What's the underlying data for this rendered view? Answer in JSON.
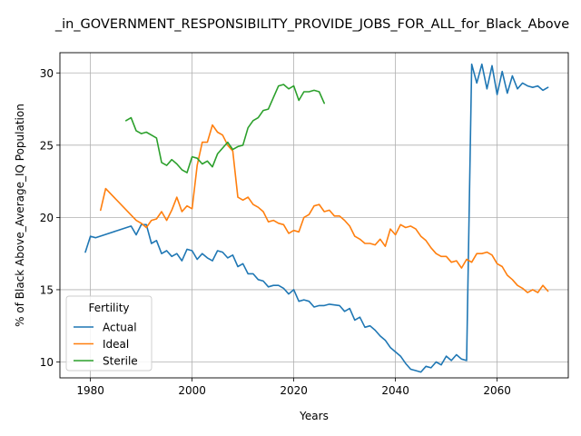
{
  "chart_data": {
    "type": "line",
    "title": "_in_GOVERNMENT_RESPONSIBILITY_PROVIDE_JOBS_FOR_ALL_for_Black_Above",
    "xlabel": "Years",
    "ylabel": "% of Black Above_Average_IQ Population",
    "xlim": [
      1974,
      2074
    ],
    "ylim": [
      8.9,
      31.4
    ],
    "xticks": [
      1980,
      2000,
      2020,
      2040,
      2060
    ],
    "yticks": [
      10,
      15,
      20,
      25,
      30
    ],
    "grid": true,
    "legend": {
      "title": "Fertility",
      "position": "lower-left"
    },
    "series": [
      {
        "name": "Actual",
        "color": "#1f77b4",
        "points": [
          [
            1979,
            17.6
          ],
          [
            1980,
            18.7
          ],
          [
            1981,
            18.6
          ],
          [
            1988,
            19.4
          ],
          [
            1989,
            18.8
          ],
          [
            1990,
            19.5
          ],
          [
            1991,
            19.5
          ],
          [
            1992,
            18.2
          ],
          [
            1993,
            18.4
          ],
          [
            1994,
            17.5
          ],
          [
            1995,
            17.7
          ],
          [
            1996,
            17.3
          ],
          [
            1997,
            17.5
          ],
          [
            1998,
            17.0
          ],
          [
            1999,
            17.8
          ],
          [
            2000,
            17.7
          ],
          [
            2001,
            17.1
          ],
          [
            2002,
            17.5
          ],
          [
            2003,
            17.2
          ],
          [
            2004,
            17.0
          ],
          [
            2005,
            17.7
          ],
          [
            2006,
            17.6
          ],
          [
            2007,
            17.2
          ],
          [
            2008,
            17.4
          ],
          [
            2009,
            16.6
          ],
          [
            2010,
            16.8
          ],
          [
            2011,
            16.1
          ],
          [
            2012,
            16.1
          ],
          [
            2013,
            15.7
          ],
          [
            2014,
            15.6
          ],
          [
            2015,
            15.2
          ],
          [
            2016,
            15.3
          ],
          [
            2017,
            15.3
          ],
          [
            2018,
            15.1
          ],
          [
            2019,
            14.7
          ],
          [
            2020,
            15.0
          ],
          [
            2021,
            14.2
          ],
          [
            2022,
            14.3
          ],
          [
            2023,
            14.2
          ],
          [
            2024,
            13.8
          ],
          [
            2025,
            13.9
          ],
          [
            2026,
            13.9
          ],
          [
            2027,
            14.0
          ],
          [
            2029,
            13.9
          ],
          [
            2030,
            13.5
          ],
          [
            2031,
            13.7
          ],
          [
            2032,
            12.9
          ],
          [
            2033,
            13.1
          ],
          [
            2034,
            12.4
          ],
          [
            2035,
            12.5
          ],
          [
            2036,
            12.2
          ],
          [
            2037,
            11.8
          ],
          [
            2038,
            11.5
          ],
          [
            2039,
            11.0
          ],
          [
            2040,
            10.7
          ],
          [
            2041,
            10.4
          ],
          [
            2042,
            9.9
          ],
          [
            2043,
            9.5
          ],
          [
            2044,
            9.4
          ],
          [
            2045,
            9.3
          ],
          [
            2046,
            9.7
          ],
          [
            2047,
            9.6
          ],
          [
            2048,
            10.0
          ],
          [
            2049,
            9.8
          ],
          [
            2050,
            10.4
          ],
          [
            2051,
            10.1
          ],
          [
            2052,
            10.5
          ],
          [
            2053,
            10.2
          ],
          [
            2054,
            10.1
          ],
          [
            2055,
            30.6
          ],
          [
            2056,
            29.3
          ],
          [
            2057,
            30.6
          ],
          [
            2058,
            28.9
          ],
          [
            2059,
            30.5
          ],
          [
            2060,
            28.5
          ],
          [
            2061,
            30.1
          ],
          [
            2062,
            28.6
          ],
          [
            2063,
            29.8
          ],
          [
            2064,
            28.9
          ],
          [
            2065,
            29.3
          ],
          [
            2066,
            29.1
          ],
          [
            2067,
            29.0
          ],
          [
            2068,
            29.1
          ],
          [
            2069,
            28.8
          ],
          [
            2070,
            29.0
          ]
        ]
      },
      {
        "name": "Ideal",
        "color": "#ff7f0e",
        "points": [
          [
            1982,
            20.5
          ],
          [
            1983,
            22.0
          ],
          [
            1989,
            19.8
          ],
          [
            1990,
            19.6
          ],
          [
            1991,
            19.3
          ],
          [
            1992,
            19.8
          ],
          [
            1993,
            19.9
          ],
          [
            1994,
            20.4
          ],
          [
            1995,
            19.8
          ],
          [
            1996,
            20.5
          ],
          [
            1997,
            21.4
          ],
          [
            1998,
            20.4
          ],
          [
            1999,
            20.8
          ],
          [
            2000,
            20.6
          ],
          [
            2001,
            23.6
          ],
          [
            2002,
            25.2
          ],
          [
            2003,
            25.2
          ],
          [
            2004,
            26.4
          ],
          [
            2005,
            25.9
          ],
          [
            2006,
            25.7
          ],
          [
            2007,
            25.0
          ],
          [
            2008,
            24.6
          ],
          [
            2009,
            21.4
          ],
          [
            2010,
            21.2
          ],
          [
            2011,
            21.4
          ],
          [
            2012,
            20.9
          ],
          [
            2013,
            20.7
          ],
          [
            2014,
            20.4
          ],
          [
            2015,
            19.7
          ],
          [
            2016,
            19.8
          ],
          [
            2017,
            19.6
          ],
          [
            2018,
            19.5
          ],
          [
            2019,
            18.9
          ],
          [
            2020,
            19.1
          ],
          [
            2021,
            19.0
          ],
          [
            2022,
            20.0
          ],
          [
            2023,
            20.2
          ],
          [
            2024,
            20.8
          ],
          [
            2025,
            20.9
          ],
          [
            2026,
            20.4
          ],
          [
            2027,
            20.5
          ],
          [
            2028,
            20.1
          ],
          [
            2029,
            20.1
          ],
          [
            2030,
            19.8
          ],
          [
            2031,
            19.4
          ],
          [
            2032,
            18.7
          ],
          [
            2033,
            18.5
          ],
          [
            2034,
            18.2
          ],
          [
            2035,
            18.2
          ],
          [
            2036,
            18.1
          ],
          [
            2037,
            18.5
          ],
          [
            2038,
            18.0
          ],
          [
            2039,
            19.2
          ],
          [
            2040,
            18.8
          ],
          [
            2041,
            19.5
          ],
          [
            2042,
            19.3
          ],
          [
            2043,
            19.4
          ],
          [
            2044,
            19.2
          ],
          [
            2045,
            18.7
          ],
          [
            2046,
            18.4
          ],
          [
            2047,
            17.9
          ],
          [
            2048,
            17.5
          ],
          [
            2049,
            17.3
          ],
          [
            2050,
            17.3
          ],
          [
            2051,
            16.9
          ],
          [
            2052,
            17.0
          ],
          [
            2053,
            16.5
          ],
          [
            2054,
            17.1
          ],
          [
            2055,
            16.9
          ],
          [
            2056,
            17.5
          ],
          [
            2057,
            17.5
          ],
          [
            2058,
            17.6
          ],
          [
            2059,
            17.4
          ],
          [
            2060,
            16.8
          ],
          [
            2061,
            16.6
          ],
          [
            2062,
            16.0
          ],
          [
            2063,
            15.7
          ],
          [
            2064,
            15.3
          ],
          [
            2065,
            15.1
          ],
          [
            2066,
            14.8
          ],
          [
            2067,
            15.0
          ],
          [
            2068,
            14.8
          ],
          [
            2069,
            15.3
          ],
          [
            2070,
            14.9
          ]
        ]
      },
      {
        "name": "Sterile",
        "color": "#2ca02c",
        "points": [
          [
            1987,
            26.7
          ],
          [
            1988,
            26.9
          ],
          [
            1989,
            26.0
          ],
          [
            1990,
            25.8
          ],
          [
            1991,
            25.9
          ],
          [
            1992,
            25.7
          ],
          [
            1993,
            25.5
          ],
          [
            1994,
            23.8
          ],
          [
            1995,
            23.6
          ],
          [
            1996,
            24.0
          ],
          [
            1997,
            23.7
          ],
          [
            1998,
            23.3
          ],
          [
            1999,
            23.1
          ],
          [
            2000,
            24.2
          ],
          [
            2001,
            24.1
          ],
          [
            2002,
            23.7
          ],
          [
            2003,
            23.9
          ],
          [
            2004,
            23.5
          ],
          [
            2005,
            24.4
          ],
          [
            2006,
            24.8
          ],
          [
            2007,
            25.2
          ],
          [
            2008,
            24.7
          ],
          [
            2009,
            24.9
          ],
          [
            2010,
            25.0
          ],
          [
            2011,
            26.2
          ],
          [
            2012,
            26.7
          ],
          [
            2013,
            26.9
          ],
          [
            2014,
            27.4
          ],
          [
            2015,
            27.5
          ],
          [
            2016,
            28.3
          ],
          [
            2017,
            29.1
          ],
          [
            2018,
            29.2
          ],
          [
            2019,
            28.9
          ],
          [
            2020,
            29.1
          ],
          [
            2021,
            28.1
          ],
          [
            2022,
            28.7
          ],
          [
            2023,
            28.7
          ],
          [
            2024,
            28.8
          ],
          [
            2025,
            28.7
          ],
          [
            2026,
            27.9
          ]
        ]
      }
    ]
  }
}
